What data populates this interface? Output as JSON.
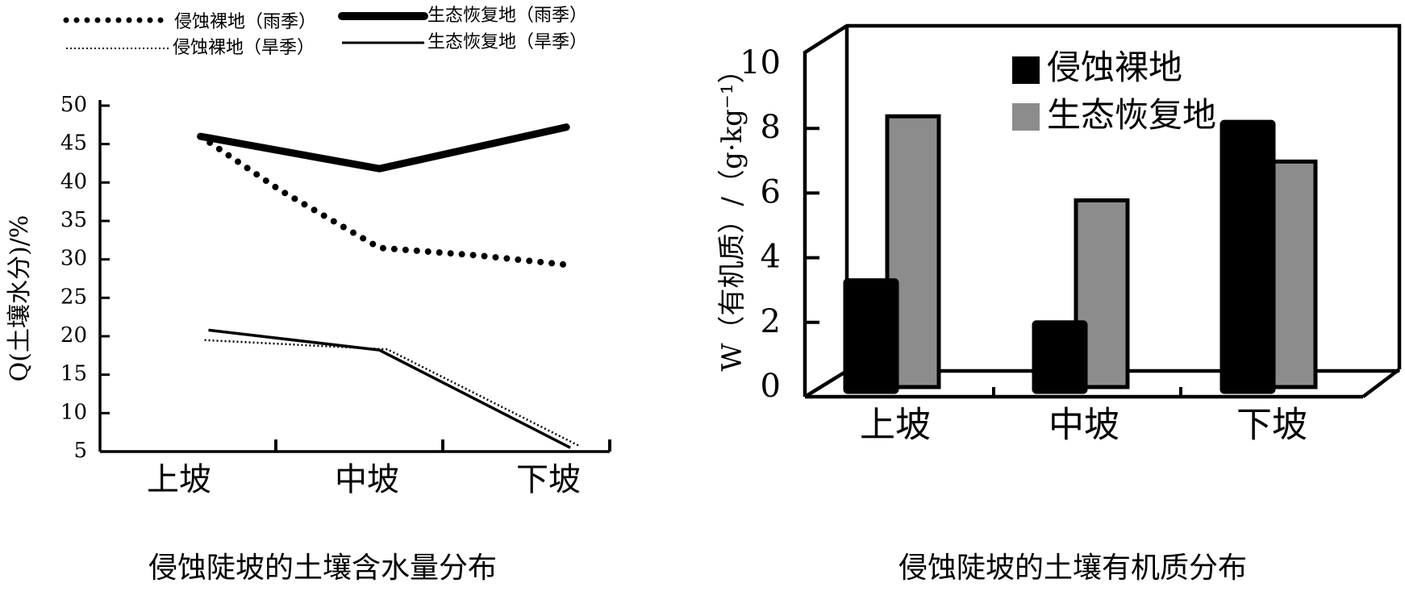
{
  "chart_data": [
    {
      "type": "line",
      "title": "侵蚀陡坡的土壤含水量分布",
      "ylabel": "Q(土壤水分)/%",
      "xlabel": "",
      "categories": [
        "上坡",
        "中坡",
        "下坡"
      ],
      "ylim": [
        5,
        50
      ],
      "yticks": [
        5,
        10,
        15,
        20,
        25,
        30,
        35,
        40,
        45,
        50
      ],
      "series": [
        {
          "name": "侵蚀裸地（雨季）",
          "x": [
            0.05,
            0.25,
            0.5,
            0.75,
            0.97
          ],
          "values": [
            46,
            39,
            31.5,
            30.5,
            29.3
          ]
        },
        {
          "name": "生态恢复地（雨季）",
          "x": [
            0.05,
            0.5,
            0.97
          ],
          "values": [
            46,
            41.8,
            47.2
          ]
        },
        {
          "name": "侵蚀裸地（旱季）",
          "x": [
            0.06,
            0.52,
            1.0
          ],
          "values": [
            19.5,
            18.3,
            5.8
          ]
        },
        {
          "name": "生态恢复地（旱季）",
          "x": [
            0.07,
            0.5,
            0.98
          ],
          "values": [
            20.8,
            18.2,
            5.5
          ]
        }
      ]
    },
    {
      "type": "bar",
      "title": "侵蚀陡坡的土壤有机质分布",
      "ylabel": "W（有机质）/（g·kg⁻¹）",
      "xlabel": "",
      "categories": [
        "上坡",
        "中坡",
        "下坡"
      ],
      "ylim": [
        0,
        10
      ],
      "yticks": [
        0,
        2,
        4,
        6,
        8,
        10
      ],
      "series": [
        {
          "name": "侵蚀裸地",
          "values": [
            3.5,
            2.2,
            8.4
          ]
        },
        {
          "name": "生态恢复地",
          "values": [
            7.8,
            5.2,
            6.4
          ]
        }
      ]
    }
  ],
  "colors": {
    "bare": "#000000",
    "restored": "#8c8c8c"
  }
}
